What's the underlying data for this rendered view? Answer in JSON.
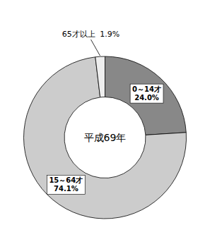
{
  "chart_data": {
    "type": "donut",
    "title": "平成69年",
    "categories": [
      "0～14才",
      "15～64才",
      "65才以上"
    ],
    "values": [
      24.0,
      74.1,
      1.9
    ],
    "value_labels": [
      "24.0%",
      "74.1%",
      "1.9%"
    ],
    "colors": [
      "#888888",
      "#cccccc",
      "#eeeeee"
    ],
    "data_labels": true
  }
}
